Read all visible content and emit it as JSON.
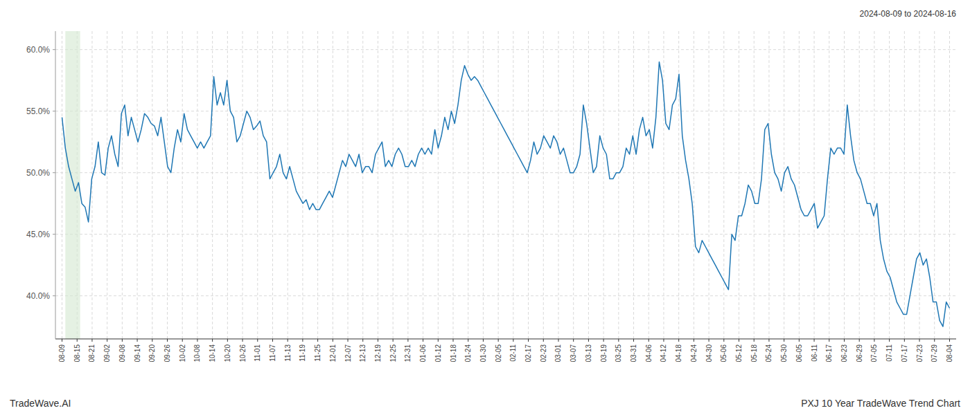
{
  "chart_data": {
    "type": "line",
    "title": "PXJ 10 Year TradeWave Trend Chart",
    "subtitle": "2024-08-09 to 2024-08-16",
    "source": "TradeWave.AI",
    "color": "#1f77b4",
    "grid": true,
    "highlight_band": {
      "start": 1.0,
      "end": 5.5,
      "color": "#d4e8d0"
    },
    "xlim": [
      -2,
      271
    ],
    "xticks": [
      {
        "value": 0,
        "label": "08-09"
      },
      {
        "value": 4.559322,
        "label": "08-15"
      },
      {
        "value": 9.118644,
        "label": "08-21"
      },
      {
        "value": 13.677966,
        "label": "09-02"
      },
      {
        "value": 18.237288,
        "label": "09-08"
      },
      {
        "value": 22.79661,
        "label": "09-14"
      },
      {
        "value": 27.355932,
        "label": "09-20"
      },
      {
        "value": 31.915254,
        "label": "09-26"
      },
      {
        "value": 36.474576,
        "label": "10-02"
      },
      {
        "value": 41.033898,
        "label": "10-08"
      },
      {
        "value": 45.59322,
        "label": "10-14"
      },
      {
        "value": 50.152542,
        "label": "10-20"
      },
      {
        "value": 54.711864,
        "label": "10-26"
      },
      {
        "value": 59.271186,
        "label": "11-01"
      },
      {
        "value": 63.830508,
        "label": "11-07"
      },
      {
        "value": 68.389831,
        "label": "11-13"
      },
      {
        "value": 72.949153,
        "label": "11-19"
      },
      {
        "value": 77.508475,
        "label": "11-25"
      },
      {
        "value": 82.067797,
        "label": "12-01"
      },
      {
        "value": 86.627119,
        "label": "12-07"
      },
      {
        "value": 91.186441,
        "label": "12-13"
      },
      {
        "value": 95.745763,
        "label": "12-19"
      },
      {
        "value": 100.305085,
        "label": "12-25"
      },
      {
        "value": 104.864407,
        "label": "12-31"
      },
      {
        "value": 109.423729,
        "label": "01-06"
      },
      {
        "value": 113.983051,
        "label": "01-12"
      },
      {
        "value": 118.542373,
        "label": "01-18"
      },
      {
        "value": 123.101695,
        "label": "01-24"
      },
      {
        "value": 127.661017,
        "label": "01-30"
      },
      {
        "value": 132.220339,
        "label": "02-05"
      },
      {
        "value": 136.779661,
        "label": "02-11"
      },
      {
        "value": 141.338983,
        "label": "02-17"
      },
      {
        "value": 145.898305,
        "label": "02-23"
      },
      {
        "value": 150.457627,
        "label": "03-01"
      },
      {
        "value": 155.016949,
        "label": "03-07"
      },
      {
        "value": 159.576271,
        "label": "03-13"
      },
      {
        "value": 164.135593,
        "label": "03-19"
      },
      {
        "value": 168.694915,
        "label": "03-25"
      },
      {
        "value": 173.254237,
        "label": "03-31"
      },
      {
        "value": 177.813559,
        "label": "04-06"
      },
      {
        "value": 182.372881,
        "label": "04-12"
      },
      {
        "value": 186.932203,
        "label": "04-18"
      },
      {
        "value": 191.491525,
        "label": "04-24"
      },
      {
        "value": 196.050847,
        "label": "04-30"
      },
      {
        "value": 200.610169,
        "label": "05-06"
      },
      {
        "value": 205.169492,
        "label": "05-12"
      },
      {
        "value": 209.728814,
        "label": "05-18"
      },
      {
        "value": 214.288136,
        "label": "05-24"
      },
      {
        "value": 218.847458,
        "label": "05-30"
      },
      {
        "value": 223.40678,
        "label": "06-05"
      },
      {
        "value": 227.966102,
        "label": "06-11"
      },
      {
        "value": 232.525424,
        "label": "06-17"
      },
      {
        "value": 237.084746,
        "label": "06-23"
      },
      {
        "value": 241.644068,
        "label": "06-29"
      },
      {
        "value": 246.20339,
        "label": "07-05"
      },
      {
        "value": 250.762712,
        "label": "07-11"
      },
      {
        "value": 255.322034,
        "label": "07-17"
      },
      {
        "value": 259.881356,
        "label": "07-23"
      },
      {
        "value": 264.440678,
        "label": "07-29"
      },
      {
        "value": 269,
        "label": "08-04"
      }
    ],
    "ylim": [
      36.5,
      61.5
    ],
    "yticks": [
      {
        "value": 40.0,
        "label": "40.0%"
      },
      {
        "value": 45.0,
        "label": "45.0%"
      },
      {
        "value": 50.0,
        "label": "50.0%"
      },
      {
        "value": 55.0,
        "label": "55.0%"
      },
      {
        "value": 60.0,
        "label": "60.0%"
      }
    ],
    "values": [
      54.5,
      52.0,
      50.5,
      49.5,
      48.5,
      49.2,
      47.5,
      47.2,
      46.0,
      49.5,
      50.5,
      52.5,
      50.0,
      49.8,
      52.0,
      53.0,
      51.5,
      50.5,
      54.8,
      55.5,
      53.0,
      54.5,
      53.5,
      52.5,
      53.5,
      54.8,
      54.5,
      54.0,
      53.8,
      53.0,
      54.5,
      52.5,
      50.5,
      50.0,
      52.0,
      53.5,
      52.5,
      54.8,
      53.5,
      53.0,
      52.5,
      52.0,
      52.5,
      52.0,
      52.5,
      53.0,
      57.8,
      55.5,
      56.5,
      55.5,
      57.5,
      55.0,
      54.5,
      52.5,
      53.0,
      54.0,
      55.0,
      54.5,
      53.5,
      53.8,
      54.2,
      53.0,
      52.5,
      49.5,
      50.0,
      50.5,
      51.5,
      50.0,
      49.5,
      50.5,
      49.5,
      48.5,
      48.0,
      47.5,
      47.8,
      47.0,
      47.5,
      47.0,
      47.0,
      47.5,
      48.0,
      48.5,
      48.0,
      49.0,
      50.0,
      51.0,
      50.5,
      51.5,
      51.0,
      50.5,
      51.5,
      50.0,
      50.5,
      50.5,
      50.0,
      51.5,
      52.0,
      52.5,
      50.5,
      51.0,
      50.5,
      51.5,
      52.0,
      51.5,
      50.5,
      50.5,
      51.0,
      50.5,
      51.5,
      52.0,
      51.5,
      52.0,
      51.5,
      53.5,
      52.0,
      53.0,
      54.5,
      53.5,
      55.0,
      54.0,
      55.5,
      57.5,
      58.7,
      58.0,
      57.5,
      57.8,
      57.5,
      57.0,
      56.5,
      56.0,
      55.5,
      55.0,
      54.5,
      54.0,
      53.5,
      53.0,
      52.5,
      52.0,
      51.5,
      51.0,
      50.5,
      50.0,
      51.0,
      52.5,
      51.5,
      52.0,
      53.0,
      52.5,
      52.0,
      53.0,
      52.5,
      51.5,
      52.0,
      51.0,
      50.0,
      50.0,
      50.5,
      51.5,
      55.5,
      54.0,
      52.0,
      50.0,
      50.5,
      53.0,
      52.0,
      51.5,
      49.5,
      49.5,
      50.0,
      50.0,
      50.5,
      52.0,
      51.5,
      53.0,
      51.5,
      53.5,
      54.5,
      53.0,
      53.5,
      52.0,
      54.5,
      59.0,
      57.5,
      54.0,
      53.5,
      55.5,
      56.0,
      58.0,
      53.0,
      51.0,
      49.5,
      47.5,
      44.0,
      43.5,
      44.5,
      44.0,
      43.5,
      43.0,
      42.5,
      42.0,
      41.5,
      41.0,
      40.5,
      45.0,
      44.5,
      46.5,
      46.5,
      47.5,
      49.0,
      48.5,
      47.5,
      47.5,
      49.5,
      53.5,
      54.0,
      51.5,
      50.0,
      49.5,
      48.5,
      50.0,
      50.5,
      49.5,
      49.0,
      48.0,
      47.0,
      46.5,
      46.5,
      47.0,
      47.5,
      45.5,
      46.0,
      46.5,
      49.5,
      52.0,
      51.5,
      52.0,
      52.0,
      51.5,
      55.5,
      53.0,
      51.0,
      50.0,
      49.5,
      48.5,
      47.5,
      47.5,
      46.5,
      47.5,
      44.5,
      43.0,
      42.0,
      41.5,
      40.5,
      39.5,
      39.0,
      38.5,
      38.5,
      40.0,
      41.5,
      43.0,
      43.5,
      42.5,
      43.0,
      41.5,
      39.5,
      39.5,
      38.0,
      37.5,
      39.5,
      39.0
    ]
  }
}
